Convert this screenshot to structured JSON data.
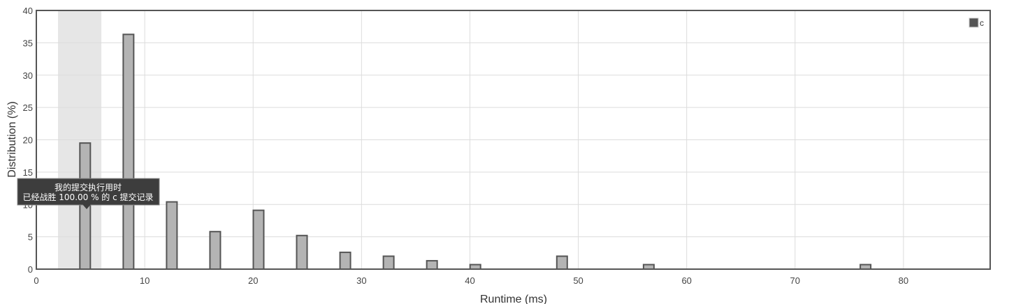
{
  "chart_data": {
    "type": "bar",
    "xlabel": "Runtime (ms)",
    "ylabel": "Distribution (%)",
    "xlim": [
      0,
      88
    ],
    "ylim": [
      0,
      40
    ],
    "x_ticks": [
      0,
      10,
      20,
      30,
      40,
      50,
      60,
      70,
      80
    ],
    "y_ticks": [
      0,
      5,
      10,
      15,
      20,
      25,
      30,
      35,
      40
    ],
    "grid": true,
    "legend_position": "top-right",
    "series": [
      {
        "name": "c",
        "color": "#b4b4b4",
        "edge_color": "#555555",
        "x": [
          4.5,
          8.5,
          12.5,
          16.5,
          20.5,
          24.5,
          28.5,
          32.5,
          36.5,
          40.5,
          48.5,
          56.5,
          76.5
        ],
        "values": [
          19.5,
          36.3,
          10.4,
          5.8,
          9.1,
          5.2,
          2.6,
          2.0,
          1.3,
          0.7,
          2.0,
          0.7,
          0.7
        ]
      }
    ],
    "highlight_band": {
      "x_range": [
        2,
        6
      ],
      "color": "#e6e6e6"
    },
    "tooltip": {
      "line1": "我的提交执行用时",
      "line2": "已经战胜 100.00 % 的 c 提交记录"
    }
  }
}
